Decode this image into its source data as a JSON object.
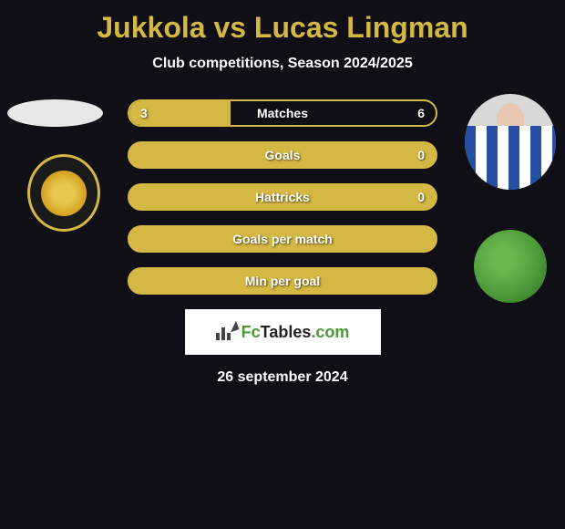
{
  "title": "Jukkola vs Lucas Lingman",
  "subtitle": "Club competitions, Season 2024/2025",
  "date": "26 september 2024",
  "watermark": {
    "brand_prefix": "Fc",
    "brand_suffix": "Tables",
    "brand_domain": ".com"
  },
  "stats": {
    "rows": [
      {
        "label": "Matches",
        "left_value": "3",
        "right_value": "6",
        "fill_type": "partial",
        "fill_percent": 33
      },
      {
        "label": "Goals",
        "left_value": "",
        "right_value": "0",
        "fill_type": "filled",
        "fill_percent": 100
      },
      {
        "label": "Hattricks",
        "left_value": "",
        "right_value": "0",
        "fill_type": "filled",
        "fill_percent": 100
      },
      {
        "label": "Goals per match",
        "left_value": "",
        "right_value": "",
        "fill_type": "filled",
        "fill_percent": 100
      },
      {
        "label": "Min per goal",
        "left_value": "",
        "right_value": "",
        "fill_type": "filled",
        "fill_percent": 100
      }
    ]
  },
  "colors": {
    "background": "#0f0f15",
    "accent": "#d4b843",
    "text": "#ffffff",
    "watermark_bg": "#ffffff",
    "watermark_green": "#4a9838"
  }
}
